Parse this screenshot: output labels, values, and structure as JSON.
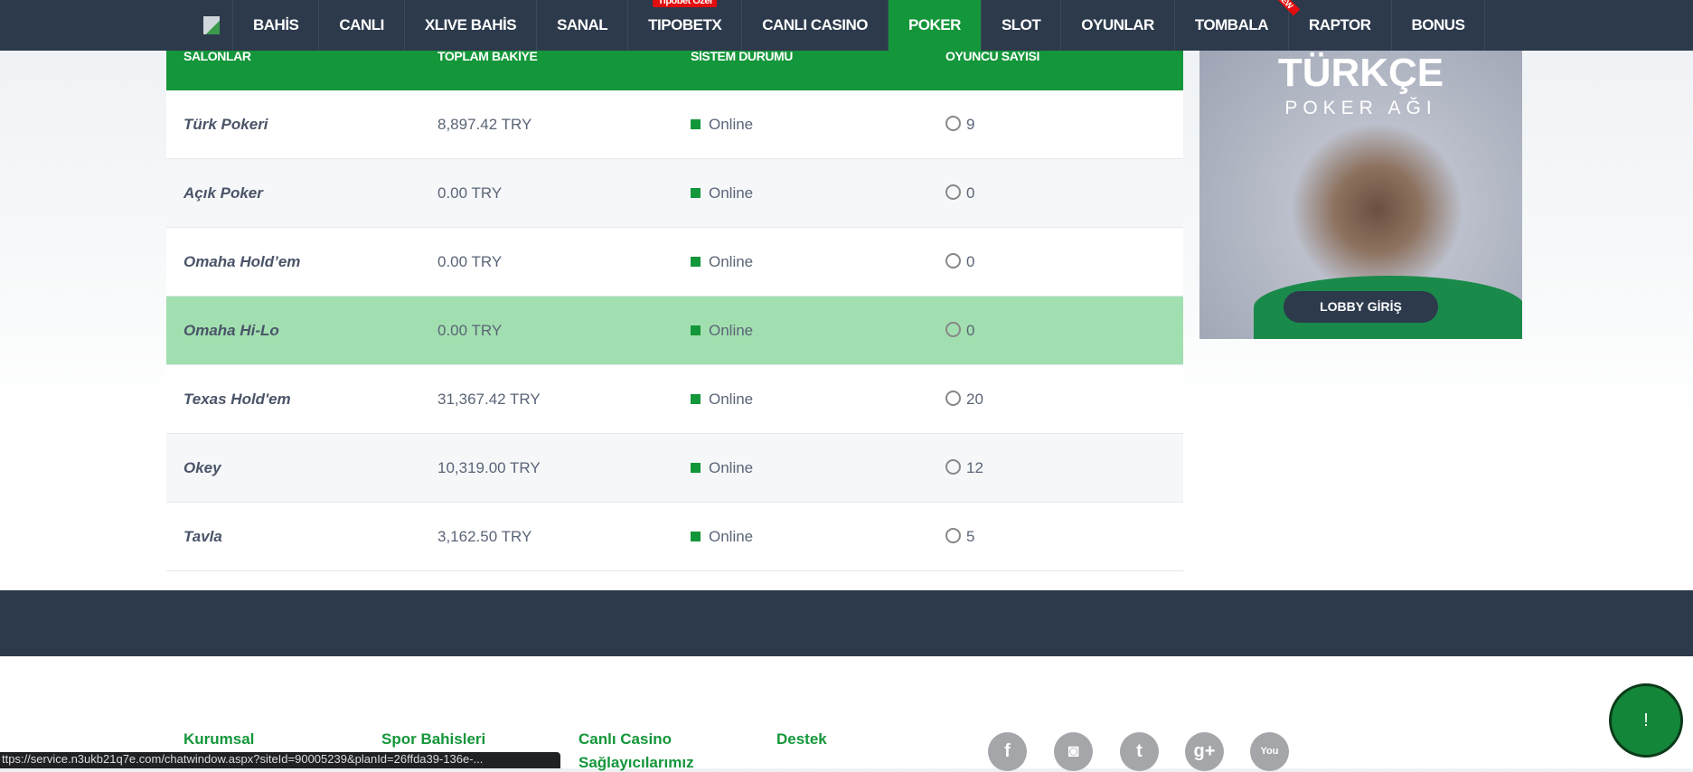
{
  "nav": {
    "items": [
      {
        "label": "BAHİS"
      },
      {
        "label": "CANLI"
      },
      {
        "label": "XLIVE BAHİS"
      },
      {
        "label": "SANAL"
      },
      {
        "label": "TIPOBETX",
        "badge": "Tipobet Özel"
      },
      {
        "label": "CANLI CASINO"
      },
      {
        "label": "POKER",
        "active": true
      },
      {
        "label": "SLOT"
      },
      {
        "label": "OYUNLAR"
      },
      {
        "label": "TOMBALA",
        "ribbon": "NEW"
      },
      {
        "label": "RAPTOR"
      },
      {
        "label": "BONUS"
      }
    ]
  },
  "table": {
    "headers": [
      "SALONLAR",
      "TOPLAM BAKİYE",
      "SİSTEM DURUMU",
      "OYUNCU SAYISI"
    ],
    "rows": [
      {
        "name": "Türk Pokeri",
        "balance": "8,897.42 TRY",
        "status": "Online",
        "players": "9"
      },
      {
        "name": "Açık Poker",
        "balance": "0.00 TRY",
        "status": "Online",
        "players": "0"
      },
      {
        "name": "Omaha Hold’em",
        "balance": "0.00 TRY",
        "status": "Online",
        "players": "0"
      },
      {
        "name": "Omaha Hi-Lo",
        "balance": "0.00 TRY",
        "status": "Online",
        "players": "0",
        "highlight": true
      },
      {
        "name": "Texas Hold'em",
        "balance": "31,367.42 TRY",
        "status": "Online",
        "players": "20"
      },
      {
        "name": "Okey",
        "balance": "10,319.00 TRY",
        "status": "Online",
        "players": "12"
      },
      {
        "name": "Tavla",
        "balance": "3,162.50 TRY",
        "status": "Online",
        "players": "5"
      }
    ]
  },
  "banner": {
    "title": "TÜRKÇE",
    "subtitle": "POKER AĞI",
    "button": "LOBBY GİRİŞ"
  },
  "footer": {
    "headings": [
      "Kurumsal",
      "Spor Bahisleri",
      "Canlı Casino",
      "Destek"
    ],
    "sub": "Sağlayıcılarımız",
    "social": [
      "facebook",
      "instagram",
      "twitter",
      "google-plus",
      "youtube"
    ]
  },
  "chat": {
    "label": "!"
  },
  "status_url": "ttps://service.n3ukb21q7e.com/chatwindow.aspx?siteId=90005239&planId=26ffda39-136e-...",
  "colors": {
    "primary": "#14963a",
    "nav": "#2c3a4c",
    "highlight": "#a2dfb0"
  }
}
